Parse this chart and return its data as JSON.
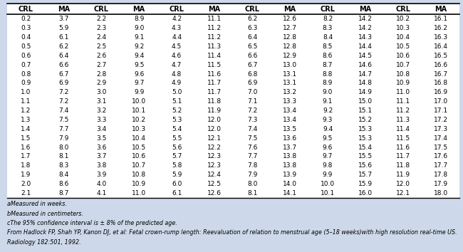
{
  "title": "",
  "background_color": "#cdd9ea",
  "table_bg": "#f0f4f8",
  "headers": [
    "CRL",
    "MA",
    "CRL",
    "MA",
    "CRL",
    "MA",
    "CRL",
    "MA",
    "CRL",
    "MA",
    "CRL",
    "MA"
  ],
  "rows": [
    [
      "0.2",
      "3.7",
      "2.2",
      "8.9",
      "4.2",
      "11.1",
      "6.2",
      "12.6",
      "8.2",
      "14.2",
      "10.2",
      "16.1"
    ],
    [
      "0.3",
      "5.9",
      "2.3",
      "9.0",
      "4.3",
      "11.2",
      "6.3",
      "12.7",
      "8.3",
      "14.2",
      "10.3",
      "16.2"
    ],
    [
      "0.4",
      "6.1",
      "2.4",
      "9.1",
      "4.4",
      "11.2",
      "6.4",
      "12.8",
      "8.4",
      "14.3",
      "10.4",
      "16.3"
    ],
    [
      "0.5",
      "6.2",
      "2.5",
      "9.2",
      "4.5",
      "11.3",
      "6.5",
      "12.8",
      "8.5",
      "14.4",
      "10.5",
      "16.4"
    ],
    [
      "0.6",
      "6.4",
      "2.6",
      "9.4",
      "4.6",
      "11.4",
      "6.6",
      "12.9",
      "8.6",
      "14.5",
      "10.6",
      "16.5"
    ],
    [
      "0.7",
      "6.6",
      "2.7",
      "9.5",
      "4.7",
      "11.5",
      "6.7",
      "13.0",
      "8.7",
      "14.6",
      "10.7",
      "16.6"
    ],
    [
      "0.8",
      "6.7",
      "2.8",
      "9.6",
      "4.8",
      "11.6",
      "6.8",
      "13.1",
      "8.8",
      "14.7",
      "10.8",
      "16.7"
    ],
    [
      "0.9",
      "6.9",
      "2.9",
      "9.7",
      "4.9",
      "11.7",
      "6.9",
      "13.1",
      "8.9",
      "14.8",
      "10.9",
      "16.8"
    ],
    [
      "1.0",
      "7.2",
      "3.0",
      "9.9",
      "5.0",
      "11.7",
      "7.0",
      "13.2",
      "9.0",
      "14.9",
      "11.0",
      "16.9"
    ],
    [
      "1.1",
      "7.2",
      "3.1",
      "10.0",
      "5.1",
      "11.8",
      "7.1",
      "13.3",
      "9.1",
      "15.0",
      "11.1",
      "17.0"
    ],
    [
      "1.2",
      "7.4",
      "3.2",
      "10.1",
      "5.2",
      "11.9",
      "7.2",
      "13.4",
      "9.2",
      "15.1",
      "11.2",
      "17.1"
    ],
    [
      "1.3",
      "7.5",
      "3.3",
      "10.2",
      "5.3",
      "12.0",
      "7.3",
      "13.4",
      "9.3",
      "15.2",
      "11.3",
      "17.2"
    ],
    [
      "1.4",
      "7.7",
      "3.4",
      "10.3",
      "5.4",
      "12.0",
      "7.4",
      "13.5",
      "9.4",
      "15.3",
      "11.4",
      "17.3"
    ],
    [
      "1.5",
      "7.9",
      "3.5",
      "10.4",
      "5.5",
      "12.1",
      "7.5",
      "13.6",
      "9.5",
      "15.3",
      "11.5",
      "17.4"
    ],
    [
      "1.6",
      "8.0",
      "3.6",
      "10.5",
      "5.6",
      "12.2",
      "7.6",
      "13.7",
      "9.6",
      "15.4",
      "11.6",
      "17.5"
    ],
    [
      "1.7",
      "8.1",
      "3.7",
      "10.6",
      "5.7",
      "12.3",
      "7.7",
      "13.8",
      "9.7",
      "15.5",
      "11.7",
      "17.6"
    ],
    [
      "1.8",
      "8.3",
      "3.8",
      "10.7",
      "5.8",
      "12.3",
      "7.8",
      "13.8",
      "9.8",
      "15.6",
      "11.8",
      "17.7"
    ],
    [
      "1.9",
      "8.4",
      "3.9",
      "10.8",
      "5.9",
      "12.4",
      "7.9",
      "13.9",
      "9.9",
      "15.7",
      "11.9",
      "17.8"
    ],
    [
      "2.0",
      "8.6",
      "4.0",
      "10.9",
      "6.0",
      "12.5",
      "8.0",
      "14.0",
      "10.0",
      "15.9",
      "12.0",
      "17.9"
    ],
    [
      "2.1",
      "8.7",
      "4.1",
      "11.0",
      "6.1",
      "12.6",
      "8.1",
      "14.1",
      "10.1",
      "16.0",
      "12.1",
      "18.0"
    ]
  ],
  "footnotes": [
    "aMeasured in weeks.",
    "bMeasured in centimeters.",
    "cThe 95% confidence interval is ± 8% of the predicted age.",
    "From Hadlock FP, Shah YP, Kanon DJ, et al: Fetal crown-rump length: Reevaluation of relation to menstrual age (5–18 weeks)with high resolution real-time US.",
    "Radiology 182:501, 1992."
  ],
  "header_font_size": 7.0,
  "cell_font_size": 6.5,
  "footnote_font_size": 5.8
}
